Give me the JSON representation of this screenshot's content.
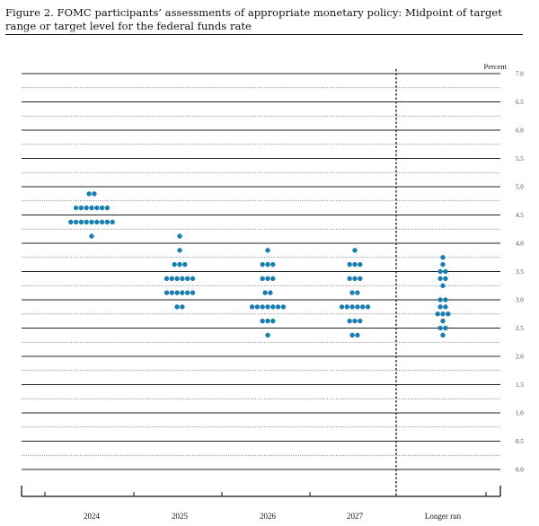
{
  "figure": {
    "caption": "Figure 2. FOMC participants’ assessments of appropriate monetary policy: Midpoint of target range or target level for the federal funds rate"
  },
  "chart_data": {
    "type": "scatter",
    "subtype": "dot plot",
    "ylabel": "Percent",
    "ylim": [
      0,
      7
    ],
    "yticks": [
      "0.0",
      "0.5",
      "1.0",
      "1.5",
      "2.0",
      "2.5",
      "3.0",
      "3.5",
      "4.0",
      "4.5",
      "5.0",
      "5.5",
      "6.0",
      "6.5",
      "7.0"
    ],
    "grid": true,
    "categories": [
      "2024",
      "2025",
      "2026",
      "2027",
      "Longer run"
    ],
    "dots": [
      {
        "category": "2024",
        "counts": [
          [
            4.875,
            2
          ],
          [
            4.625,
            7
          ],
          [
            4.375,
            9
          ],
          [
            4.125,
            1
          ]
        ]
      },
      {
        "category": "2025",
        "counts": [
          [
            4.125,
            1
          ],
          [
            3.875,
            1
          ],
          [
            3.625,
            3
          ],
          [
            3.375,
            6
          ],
          [
            3.125,
            6
          ],
          [
            2.875,
            2
          ]
        ]
      },
      {
        "category": "2026",
        "counts": [
          [
            3.875,
            1
          ],
          [
            3.625,
            3
          ],
          [
            3.375,
            3
          ],
          [
            3.125,
            2
          ],
          [
            2.875,
            7
          ],
          [
            2.625,
            3
          ],
          [
            2.375,
            1
          ]
        ]
      },
      {
        "category": "2027",
        "counts": [
          [
            3.875,
            1
          ],
          [
            3.625,
            3
          ],
          [
            3.375,
            3
          ],
          [
            3.125,
            2
          ],
          [
            2.875,
            6
          ],
          [
            2.625,
            3
          ],
          [
            2.375,
            2
          ]
        ]
      },
      {
        "category": "Longer run",
        "counts": [
          [
            3.75,
            1
          ],
          [
            3.625,
            1
          ],
          [
            3.5,
            2
          ],
          [
            3.375,
            2
          ],
          [
            3.25,
            1
          ],
          [
            3.0,
            2
          ],
          [
            2.875,
            2
          ],
          [
            2.75,
            3
          ],
          [
            2.625,
            1
          ],
          [
            2.5,
            2
          ],
          [
            2.375,
            1
          ]
        ]
      }
    ],
    "dot_color": "#1a7fb0",
    "divider_style": "dashed"
  }
}
